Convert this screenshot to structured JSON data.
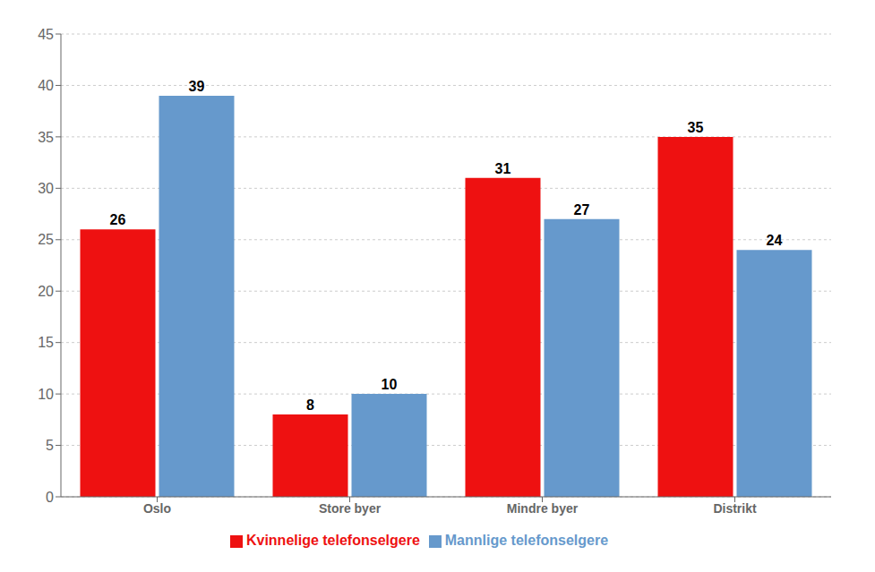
{
  "chart_data": {
    "type": "bar",
    "categories": [
      "Oslo",
      "Store byer",
      "Mindre byer",
      "Distrikt"
    ],
    "series": [
      {
        "name": "Kvinnelige telefonselgere",
        "color": "#ee1111",
        "values": [
          26,
          8,
          31,
          35
        ]
      },
      {
        "name": "Mannlige telefonselgere",
        "color": "#6699cc",
        "values": [
          39,
          10,
          27,
          24
        ]
      }
    ],
    "ylim": [
      0,
      45
    ],
    "yticks": [
      0,
      5,
      10,
      15,
      20,
      25,
      30,
      35,
      40,
      45
    ],
    "grid": true,
    "legend": "bottom",
    "data_labels": true
  }
}
